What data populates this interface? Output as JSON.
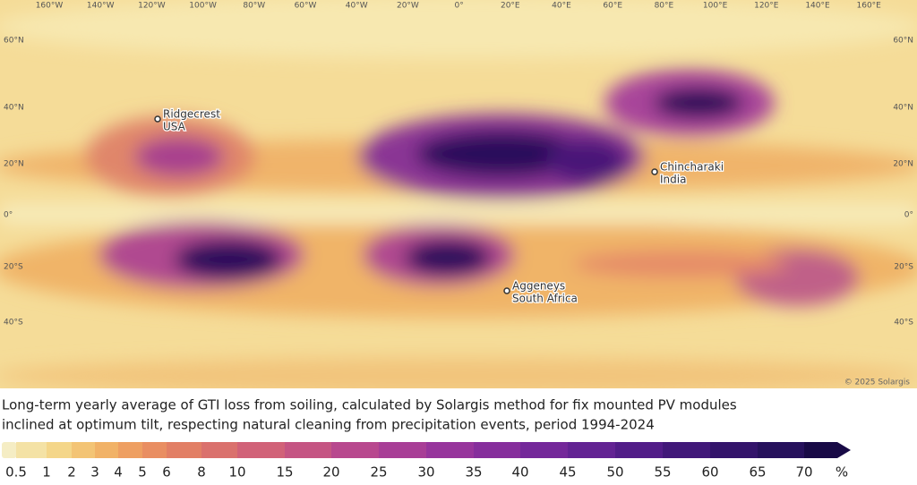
{
  "map": {
    "longitudes": [
      "160°W",
      "140°W",
      "120°W",
      "100°W",
      "80°W",
      "60°W",
      "40°W",
      "20°W",
      "0°",
      "20°E",
      "40°E",
      "60°E",
      "80°E",
      "100°E",
      "120°E",
      "140°E",
      "160°E"
    ],
    "latitudes": [
      "60°N",
      "40°N",
      "20°N",
      "0°",
      "20°S",
      "40°S"
    ],
    "locations": [
      {
        "name": "Ridgecrest",
        "country": "USA"
      },
      {
        "name": "Chincharaki",
        "country": "India"
      },
      {
        "name": "Aggeneys",
        "country": "South Africa"
      }
    ],
    "copyright": "© 2025 Solargis"
  },
  "caption": [
    "Long-term yearly average of GTI loss from soiling, calculated by Solargis method for fix mounted PV modules",
    "inclined at optimum tilt, respecting natural cleaning from precipitation events, period 1994-2024"
  ],
  "legend": {
    "ticks": [
      0.5,
      1,
      2,
      3,
      4,
      5,
      6,
      8,
      10,
      15,
      20,
      25,
      30,
      35,
      40,
      45,
      50,
      55,
      60,
      65,
      70
    ],
    "unit": "%"
  }
}
